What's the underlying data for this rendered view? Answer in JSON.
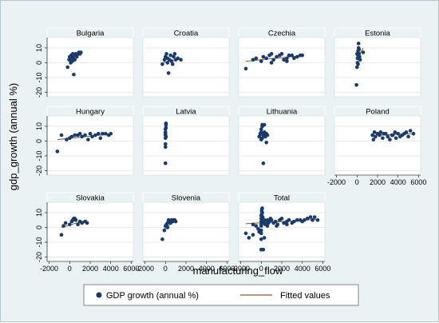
{
  "chart_data": {
    "type": "scatter",
    "ylabel": "gdp_growth (annual %)",
    "xlabel": "manufacturing_flow",
    "xlim": [
      -2200,
      6200
    ],
    "ylim": [
      -23,
      17
    ],
    "xticks": [
      -2000,
      0,
      2000,
      4000,
      6000
    ],
    "yticks": [
      -20,
      -10,
      0,
      10
    ],
    "legend": {
      "position": "bottom",
      "markers_label": "GDP growth (annual %)",
      "line_label": "Fitted values"
    },
    "colors": {
      "marker": "#1a3a6b",
      "fit": "#8b5a2b",
      "panel_bg": "#ffffff",
      "figure_bg": "#eaf2f3"
    },
    "panels": [
      {
        "name": "Bulgaria",
        "row": 0,
        "col": 0,
        "x_axis": false,
        "points": [
          [
            -200,
            -3
          ],
          [
            -50,
            2
          ],
          [
            50,
            3
          ],
          [
            100,
            0
          ],
          [
            150,
            5
          ],
          [
            200,
            4
          ],
          [
            250,
            1
          ],
          [
            300,
            6
          ],
          [
            350,
            3
          ],
          [
            400,
            -8
          ],
          [
            450,
            5
          ],
          [
            500,
            2
          ],
          [
            600,
            6
          ],
          [
            700,
            4
          ],
          [
            800,
            6
          ],
          [
            900,
            7
          ],
          [
            1000,
            6
          ],
          [
            1100,
            7
          ],
          [
            0,
            4
          ],
          [
            300,
            2
          ]
        ],
        "fit": [
          [
            -250,
            2
          ],
          [
            1100,
            5.5
          ]
        ]
      },
      {
        "name": "Croatia",
        "row": 0,
        "col": 1,
        "x_axis": false,
        "points": [
          [
            -300,
            -1
          ],
          [
            -100,
            2
          ],
          [
            0,
            4
          ],
          [
            100,
            6
          ],
          [
            200,
            3
          ],
          [
            300,
            -7
          ],
          [
            400,
            2
          ],
          [
            500,
            5
          ],
          [
            600,
            1
          ],
          [
            700,
            -1
          ],
          [
            800,
            4
          ],
          [
            900,
            6
          ],
          [
            1000,
            2
          ],
          [
            1200,
            3
          ],
          [
            1500,
            2
          ],
          [
            200,
            0
          ]
        ],
        "fit": [
          [
            -300,
            0
          ],
          [
            1500,
            3
          ]
        ]
      },
      {
        "name": "Czechia",
        "row": 0,
        "col": 2,
        "x_axis": false,
        "points": [
          [
            -1500,
            -4
          ],
          [
            -800,
            2
          ],
          [
            -500,
            3
          ],
          [
            0,
            1
          ],
          [
            200,
            4
          ],
          [
            500,
            3
          ],
          [
            800,
            5
          ],
          [
            1000,
            6
          ],
          [
            1200,
            2
          ],
          [
            1500,
            4
          ],
          [
            1800,
            5
          ],
          [
            2000,
            6
          ],
          [
            2200,
            2
          ],
          [
            2500,
            3
          ],
          [
            2700,
            5
          ],
          [
            3000,
            5
          ],
          [
            3200,
            3
          ],
          [
            3500,
            4
          ],
          [
            3800,
            5
          ],
          [
            4000,
            5
          ],
          [
            1000,
            0
          ],
          [
            2500,
            1
          ]
        ],
        "fit": [
          [
            -1500,
            1
          ],
          [
            4000,
            4.8
          ]
        ]
      },
      {
        "name": "Estonia",
        "row": 0,
        "col": 3,
        "x_axis": false,
        "points": [
          [
            -50,
            -15
          ],
          [
            0,
            -3
          ],
          [
            50,
            0
          ],
          [
            50,
            3
          ],
          [
            100,
            5
          ],
          [
            100,
            8
          ],
          [
            150,
            10
          ],
          [
            150,
            13
          ],
          [
            200,
            6
          ],
          [
            250,
            4
          ],
          [
            300,
            2
          ],
          [
            0,
            6
          ],
          [
            200,
            9
          ],
          [
            600,
            7
          ],
          [
            100,
            -1
          ]
        ],
        "fit": [
          [
            0,
            3
          ],
          [
            600,
            10
          ]
        ]
      },
      {
        "name": "Hungary",
        "row": 1,
        "col": 0,
        "x_axis": false,
        "points": [
          [
            -1200,
            -7
          ],
          [
            -800,
            4
          ],
          [
            -300,
            1
          ],
          [
            0,
            2
          ],
          [
            200,
            3
          ],
          [
            500,
            4
          ],
          [
            800,
            4
          ],
          [
            1000,
            5
          ],
          [
            1200,
            3
          ],
          [
            1500,
            4
          ],
          [
            1800,
            1
          ],
          [
            2000,
            5
          ],
          [
            2200,
            3
          ],
          [
            2500,
            4
          ],
          [
            2800,
            5
          ],
          [
            3000,
            2
          ],
          [
            3200,
            5
          ],
          [
            3500,
            5
          ],
          [
            3800,
            4
          ],
          [
            4000,
            5
          ]
        ],
        "fit": [
          [
            -1200,
            1
          ],
          [
            4000,
            4.8
          ]
        ]
      },
      {
        "name": "Latvia",
        "row": 1,
        "col": 1,
        "x_axis": false,
        "points": [
          [
            0,
            -15
          ],
          [
            0,
            -4
          ],
          [
            0,
            -2
          ],
          [
            0,
            2
          ],
          [
            0,
            4
          ],
          [
            0,
            6
          ],
          [
            0,
            8
          ],
          [
            50,
            9
          ],
          [
            50,
            11
          ],
          [
            50,
            12
          ],
          [
            0,
            5
          ],
          [
            50,
            3
          ]
        ],
        "fit": [
          [
            -50,
            2
          ],
          [
            100,
            6
          ]
        ]
      },
      {
        "name": "Lithuania",
        "row": 1,
        "col": 2,
        "x_axis": false,
        "points": [
          [
            -200,
            3
          ],
          [
            -100,
            5
          ],
          [
            0,
            6
          ],
          [
            0,
            8
          ],
          [
            100,
            10
          ],
          [
            100,
            11
          ],
          [
            200,
            -15
          ],
          [
            200,
            4
          ],
          [
            300,
            11
          ],
          [
            300,
            6
          ],
          [
            400,
            3
          ],
          [
            500,
            -1
          ],
          [
            500,
            5
          ],
          [
            600,
            4
          ],
          [
            100,
            2
          ],
          [
            0,
            1
          ]
        ],
        "fit": [
          [
            -200,
            3
          ],
          [
            600,
            6
          ]
        ]
      },
      {
        "name": "Poland",
        "row": 1,
        "col": 3,
        "x_axis": true,
        "points": [
          [
            1500,
            4
          ],
          [
            1600,
            1
          ],
          [
            1700,
            6
          ],
          [
            1800,
            3
          ],
          [
            2000,
            5
          ],
          [
            2200,
            4
          ],
          [
            2300,
            6
          ],
          [
            2500,
            2
          ],
          [
            2600,
            5
          ],
          [
            2800,
            5
          ],
          [
            3000,
            3
          ],
          [
            3200,
            1
          ],
          [
            3400,
            4
          ],
          [
            3500,
            4
          ],
          [
            3700,
            6
          ],
          [
            3800,
            2
          ],
          [
            4000,
            5
          ],
          [
            4200,
            3
          ],
          [
            4400,
            4
          ],
          [
            4600,
            5
          ],
          [
            4800,
            6
          ],
          [
            5000,
            3
          ],
          [
            5200,
            7
          ],
          [
            5500,
            5
          ]
        ],
        "fit": [
          [
            1500,
            3.8
          ],
          [
            5500,
            5
          ]
        ]
      },
      {
        "name": "Slovakia",
        "row": 2,
        "col": 0,
        "x_axis": true,
        "points": [
          [
            -800,
            -5
          ],
          [
            -600,
            1
          ],
          [
            -400,
            3
          ],
          [
            0,
            2
          ],
          [
            200,
            4
          ],
          [
            300,
            5
          ],
          [
            500,
            6
          ],
          [
            600,
            5
          ],
          [
            800,
            2
          ],
          [
            1000,
            4
          ],
          [
            1200,
            3
          ],
          [
            1500,
            4
          ],
          [
            1700,
            3
          ],
          [
            400,
            6
          ]
        ],
        "fit": [
          [
            -800,
            0
          ],
          [
            1700,
            5
          ]
        ]
      },
      {
        "name": "Slovenia",
        "row": 2,
        "col": 1,
        "x_axis": true,
        "points": [
          [
            -300,
            -8
          ],
          [
            -100,
            -2
          ],
          [
            0,
            1
          ],
          [
            100,
            2
          ],
          [
            200,
            3
          ],
          [
            300,
            5
          ],
          [
            400,
            4
          ],
          [
            500,
            3
          ],
          [
            600,
            5
          ],
          [
            700,
            4
          ],
          [
            800,
            5
          ],
          [
            900,
            5
          ],
          [
            1000,
            4
          ],
          [
            200,
            0
          ]
        ],
        "fit": [
          [
            -300,
            -2
          ],
          [
            1000,
            5
          ]
        ]
      },
      {
        "name": "Total",
        "row": 2,
        "col": 2,
        "x_axis": true,
        "points": [
          [
            -1500,
            -4
          ],
          [
            -1200,
            -7
          ],
          [
            -800,
            -5
          ],
          [
            -800,
            2
          ],
          [
            -500,
            1
          ],
          [
            -300,
            -1
          ],
          [
            -200,
            -3
          ],
          [
            -100,
            -2
          ],
          [
            0,
            -15
          ],
          [
            0,
            -8
          ],
          [
            0,
            -4
          ],
          [
            0,
            -2
          ],
          [
            0,
            1
          ],
          [
            0,
            2
          ],
          [
            0,
            4
          ],
          [
            0,
            6
          ],
          [
            0,
            8
          ],
          [
            50,
            9
          ],
          [
            50,
            11
          ],
          [
            50,
            12
          ],
          [
            100,
            13
          ],
          [
            100,
            10
          ],
          [
            150,
            7
          ],
          [
            200,
            -15
          ],
          [
            200,
            3
          ],
          [
            300,
            5
          ],
          [
            300,
            -7
          ],
          [
            400,
            2
          ],
          [
            500,
            4
          ],
          [
            600,
            5
          ],
          [
            700,
            3
          ],
          [
            800,
            4
          ],
          [
            900,
            6
          ],
          [
            1000,
            5
          ],
          [
            1200,
            3
          ],
          [
            1400,
            4
          ],
          [
            1600,
            2
          ],
          [
            1800,
            5
          ],
          [
            2000,
            6
          ],
          [
            2200,
            3
          ],
          [
            2500,
            4
          ],
          [
            2700,
            5
          ],
          [
            3000,
            3
          ],
          [
            3200,
            4
          ],
          [
            3500,
            5
          ],
          [
            3800,
            5
          ],
          [
            4000,
            4
          ],
          [
            4200,
            5
          ],
          [
            4500,
            6
          ],
          [
            4800,
            7
          ],
          [
            5000,
            5
          ],
          [
            5200,
            7
          ],
          [
            5500,
            5
          ],
          [
            600,
            1
          ],
          [
            1500,
            1
          ],
          [
            2500,
            2
          ]
        ],
        "fit": [
          [
            -1500,
            2.5
          ],
          [
            5500,
            5.5
          ]
        ]
      }
    ]
  }
}
